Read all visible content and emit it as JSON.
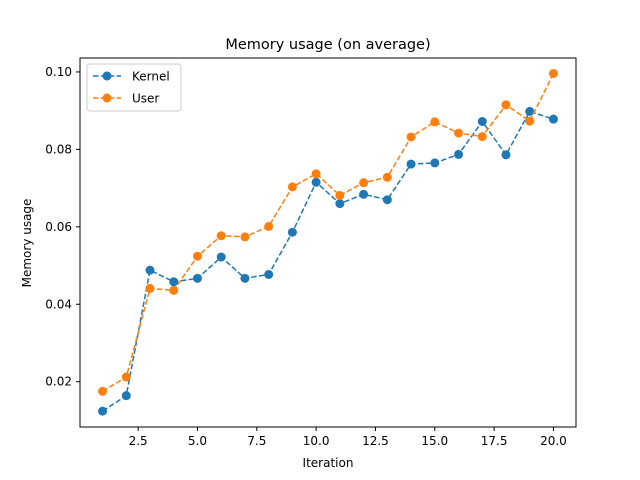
{
  "chart_data": {
    "type": "line",
    "title": "Memory usage (on average)",
    "xlabel": "Iteration",
    "ylabel": "Memory usage",
    "xlim": [
      0.05,
      20.95
    ],
    "ylim": [
      0.0083,
      0.1036
    ],
    "xticks": [
      2.5,
      5.0,
      7.5,
      10.0,
      12.5,
      15.0,
      17.5,
      20.0
    ],
    "xtick_labels": [
      "2.5",
      "5.0",
      "7.5",
      "10.0",
      "12.5",
      "15.0",
      "17.5",
      "20.0"
    ],
    "yticks": [
      0.02,
      0.04,
      0.06,
      0.08,
      0.1
    ],
    "ytick_labels": [
      "0.02",
      "0.04",
      "0.06",
      "0.08",
      "0.10"
    ],
    "grid": false,
    "legend_position": "top-left",
    "x": [
      1,
      2,
      3,
      4,
      5,
      6,
      7,
      8,
      9,
      10,
      11,
      12,
      13,
      14,
      15,
      16,
      17,
      18,
      19,
      20
    ],
    "series": [
      {
        "name": "Kernel",
        "color": "#1f77b4",
        "values": [
          0.0124,
          0.0164,
          0.0488,
          0.0458,
          0.0467,
          0.0522,
          0.0467,
          0.0477,
          0.0586,
          0.0715,
          0.066,
          0.0684,
          0.067,
          0.0762,
          0.0765,
          0.0787,
          0.0872,
          0.0786,
          0.0898,
          0.0878
        ]
      },
      {
        "name": "User",
        "color": "#ff7f0e",
        "values": [
          0.0175,
          0.0212,
          0.0441,
          0.0436,
          0.0524,
          0.0577,
          0.0574,
          0.0601,
          0.0703,
          0.0737,
          0.0681,
          0.0714,
          0.0728,
          0.0832,
          0.0871,
          0.0842,
          0.0833,
          0.0915,
          0.0873,
          0.0996
        ]
      }
    ]
  }
}
